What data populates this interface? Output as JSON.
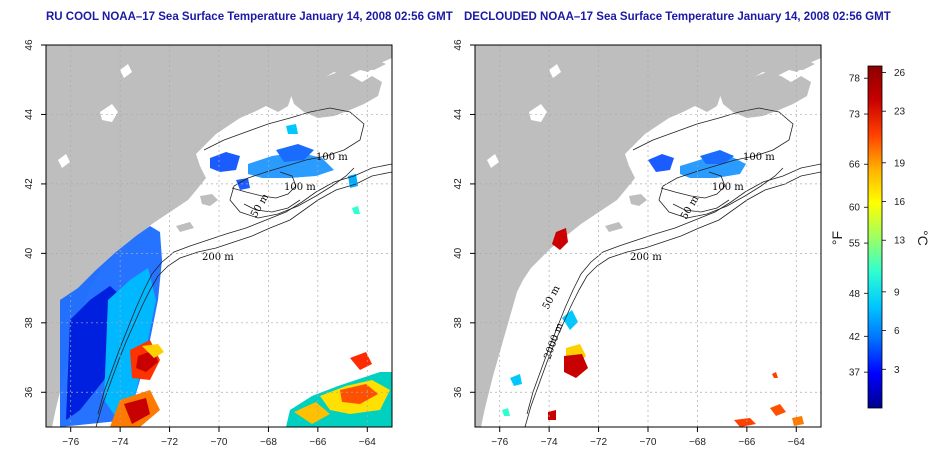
{
  "panels": [
    {
      "id": "left",
      "title": "RU COOL NOAA–17 Sea Surface Temperature January 14, 2008 02:56 GMT",
      "contour_labels": [
        "100 m",
        "100 m",
        "50 m",
        "200 m"
      ]
    },
    {
      "id": "right",
      "title": "DECLOUDED NOAA–17 Sea Surface Temperature January 14, 2008 02:56 GMT",
      "contour_labels": [
        "100 m",
        "100 m",
        "50 m",
        "200 m",
        "50 m",
        "2000 m"
      ]
    }
  ],
  "axes": {
    "x_ticks": [
      -76,
      -74,
      -72,
      -70,
      -68,
      -66,
      -64
    ],
    "x_labels": [
      "−76",
      "−74",
      "−72",
      "−70",
      "−68",
      "−66",
      "−64"
    ],
    "y_ticks": [
      36,
      38,
      40,
      42,
      44,
      46
    ],
    "y_labels": [
      "36",
      "38",
      "40",
      "42",
      "44",
      "46"
    ],
    "lon_range": [
      -77,
      -63
    ],
    "lat_range": [
      35,
      46
    ],
    "grid": "dotted"
  },
  "colorbar": {
    "fahrenheit_ticks": [
      "78",
      "73",
      "66",
      "60",
      "55",
      "48",
      "42",
      "37"
    ],
    "celsius_ticks": [
      "26",
      "23",
      "19",
      "16",
      "13",
      "9",
      "6",
      "3"
    ],
    "fahrenheit_unit": "°F",
    "celsius_unit": "°C",
    "range_c": [
      0,
      26.5
    ],
    "colors": [
      "#00008c",
      "#0000ff",
      "#0070ff",
      "#00c8ff",
      "#30ffd0",
      "#a0ff60",
      "#ffff00",
      "#ffb000",
      "#ff4000",
      "#c80000",
      "#8c0000"
    ]
  },
  "colors": {
    "land": "#bebebe",
    "ocean": "#ffffff",
    "contour": "#222222",
    "title": "#1a1aa6"
  }
}
